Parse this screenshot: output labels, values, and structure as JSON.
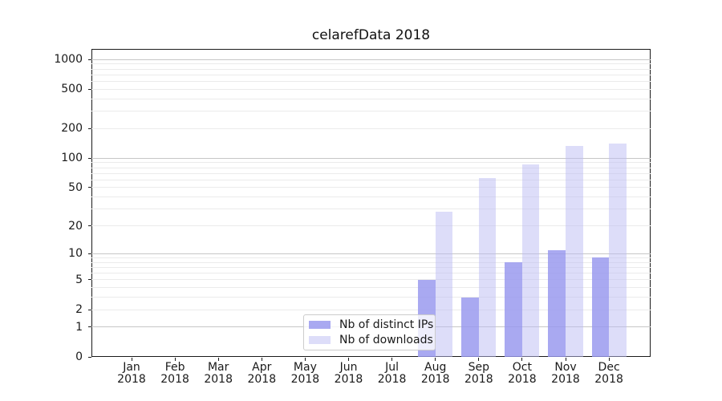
{
  "figure": {
    "background": "#ffffff",
    "axis_color": "#1a1a1a"
  },
  "chart_data": {
    "type": "bar",
    "title": "celarefData 2018",
    "x_categories": [
      {
        "month": "Jan",
        "year": "2018"
      },
      {
        "month": "Feb",
        "year": "2018"
      },
      {
        "month": "Mar",
        "year": "2018"
      },
      {
        "month": "Apr",
        "year": "2018"
      },
      {
        "month": "May",
        "year": "2018"
      },
      {
        "month": "Jun",
        "year": "2018"
      },
      {
        "month": "Jul",
        "year": "2018"
      },
      {
        "month": "Aug",
        "year": "2018"
      },
      {
        "month": "Sep",
        "year": "2018"
      },
      {
        "month": "Oct",
        "year": "2018"
      },
      {
        "month": "Nov",
        "year": "2018"
      },
      {
        "month": "Dec",
        "year": "2018"
      }
    ],
    "series": [
      {
        "key": "distinct-ips",
        "name": "Nb of distinct IPs",
        "color": "rgba(150,150,238,0.82)",
        "values": [
          0,
          0,
          0,
          0,
          0,
          0,
          0,
          5,
          3,
          8,
          11,
          9
        ]
      },
      {
        "key": "downloads",
        "name": "Nb of downloads",
        "color": "rgba(187,187,243,0.5)",
        "values": [
          0,
          0,
          0,
          0,
          0,
          0,
          0,
          28,
          63,
          86,
          133,
          141
        ]
      }
    ],
    "y_scale": "log10(1+x)",
    "ylim": [
      0,
      1275
    ],
    "y_ticks": [
      {
        "value": 1000,
        "label": "1000"
      },
      {
        "value": 500,
        "label": "500"
      },
      {
        "value": 200,
        "label": "200"
      },
      {
        "value": 100,
        "label": "100"
      },
      {
        "value": 50,
        "label": "50"
      },
      {
        "value": 20,
        "label": "20"
      },
      {
        "value": 10,
        "label": "10"
      },
      {
        "value": 5,
        "label": "5"
      },
      {
        "value": 2,
        "label": "2"
      },
      {
        "value": 1,
        "label": "1"
      },
      {
        "value": 0,
        "label": "0"
      }
    ],
    "grid": {
      "major_values": [
        1,
        10,
        100,
        1000
      ],
      "minor_values": [
        2,
        3,
        4,
        5,
        6,
        7,
        8,
        9,
        20,
        30,
        40,
        50,
        60,
        70,
        80,
        90,
        200,
        300,
        400,
        500,
        600,
        700,
        800,
        900
      ],
      "major_color": "#c6c6c6",
      "minor_color": "#ebebeb",
      "grid_on": true
    },
    "legend": {
      "position": "lower center",
      "entries": [
        "Nb of distinct IPs",
        "Nb of downloads"
      ]
    }
  }
}
